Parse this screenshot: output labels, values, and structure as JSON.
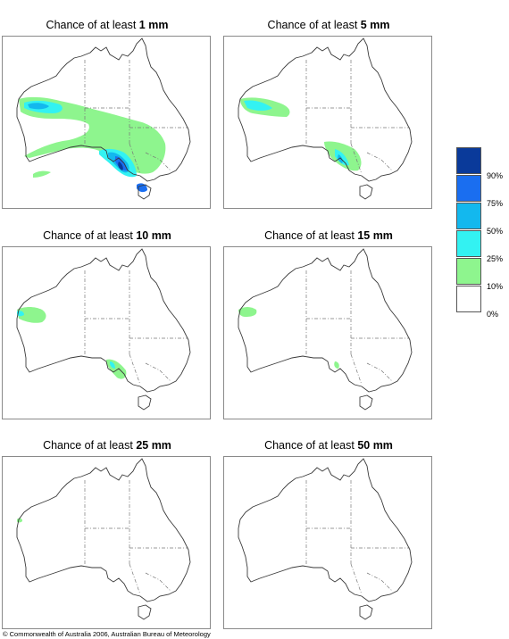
{
  "panels": [
    {
      "prefix": "Chance of at least",
      "amount": "1 mm"
    },
    {
      "prefix": "Chance of at least",
      "amount": "5 mm"
    },
    {
      "prefix": "Chance of at least",
      "amount": "10 mm"
    },
    {
      "prefix": "Chance of at least",
      "amount": "15 mm"
    },
    {
      "prefix": "Chance of at least",
      "amount": "25 mm"
    },
    {
      "prefix": "Chance of at least",
      "amount": "50 mm"
    }
  ],
  "legend": {
    "classes": [
      {
        "label": "90%",
        "color": "#0a3a9a"
      },
      {
        "label": "75%",
        "color": "#1a6ef0"
      },
      {
        "label": "50%",
        "color": "#13b8ee"
      },
      {
        "label": "25%",
        "color": "#33f2f2"
      },
      {
        "label": "10%",
        "color": "#8ef58e"
      },
      {
        "label": "0%",
        "color": "#ffffff"
      }
    ]
  },
  "copyright": "© Commonwealth of Australia 2006, Australian Bureau of Meteorology"
}
